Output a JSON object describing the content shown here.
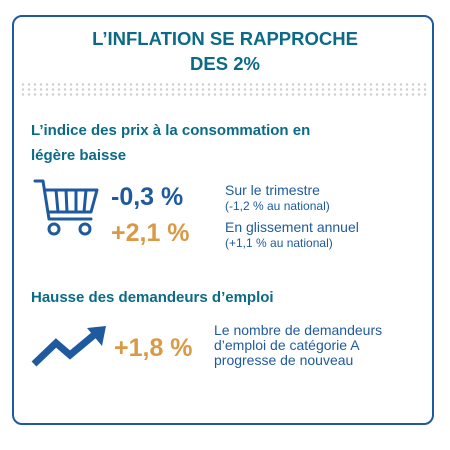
{
  "title": {
    "line1": "L’INFLATION SE RAPPROCHE",
    "line2": "DES 2%"
  },
  "section1": {
    "heading_line1": "L’indice des prix à la consommation en",
    "heading_line2": "légère baisse",
    "icon": "shopping-cart-icon",
    "quarter": {
      "value": "-0,3 %",
      "label": "Sur le trimestre",
      "national": "(-1,2 % au national)"
    },
    "annual": {
      "value": "+2,1 %",
      "label": "En glissement annuel",
      "national": "(+1,1 % au national)"
    }
  },
  "section2": {
    "heading": "Hausse des demandeurs d’emploi",
    "icon": "trending-up-arrow-icon",
    "value": "+1,8 %",
    "description_line1": "Le nombre de demandeurs",
    "description_line2": "d’emploi de catégorie A",
    "description_line3": "progresse de nouveau"
  },
  "colors": {
    "teal_title": "#0b6b86",
    "blue": "#1f5a9e",
    "orange": "#d99a45",
    "border": "#1f5a9e"
  }
}
